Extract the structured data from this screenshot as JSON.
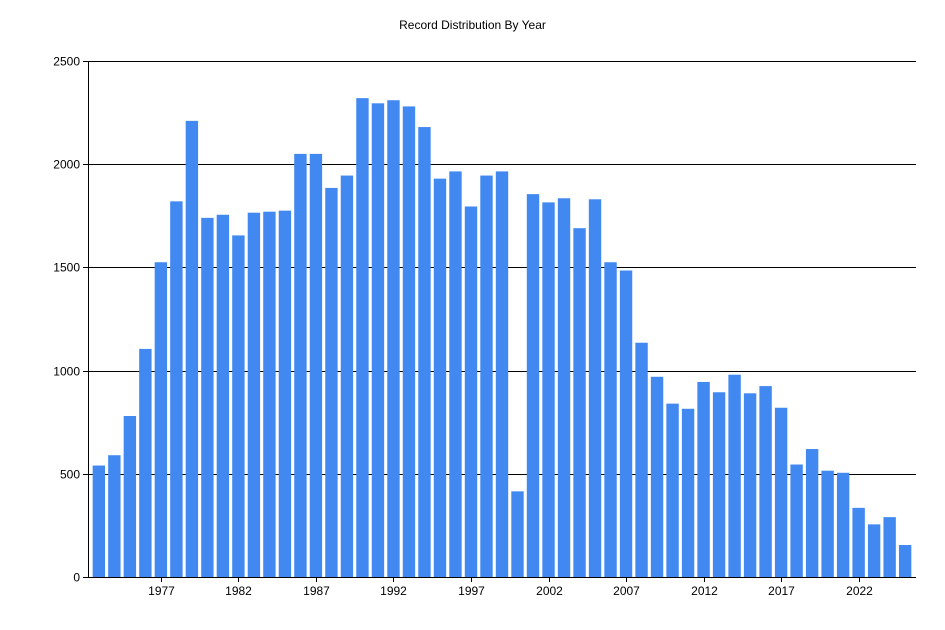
{
  "chart_data": {
    "type": "bar",
    "title": "Record Distribution By Year",
    "xlabel": "",
    "ylabel": "",
    "ylim": [
      0,
      2500
    ],
    "y_ticks": [
      0,
      500,
      1000,
      1500,
      2000,
      2500
    ],
    "x_tick_labels": [
      "1977",
      "1982",
      "1987",
      "1992",
      "1997",
      "2002",
      "2007",
      "2012",
      "2017",
      "2022"
    ],
    "grid": "horizontal",
    "legend": "none",
    "bar_color": "#4189f1",
    "categories": [
      1973,
      1974,
      1975,
      1976,
      1977,
      1978,
      1979,
      1980,
      1981,
      1982,
      1983,
      1984,
      1985,
      1986,
      1987,
      1988,
      1989,
      1990,
      1991,
      1992,
      1993,
      1994,
      1995,
      1996,
      1997,
      1998,
      1999,
      2000,
      2001,
      2002,
      2003,
      2004,
      2005,
      2006,
      2007,
      2008,
      2009,
      2010,
      2011,
      2012,
      2013,
      2014,
      2015,
      2016,
      2017,
      2018,
      2019,
      2020,
      2021,
      2022,
      2023,
      2024,
      2025
    ],
    "values": [
      540,
      590,
      780,
      1105,
      1525,
      1820,
      2210,
      1740,
      1755,
      1655,
      1765,
      1770,
      1775,
      2050,
      2050,
      1885,
      1945,
      2320,
      2295,
      2310,
      2280,
      2180,
      1930,
      1965,
      1795,
      1945,
      1965,
      415,
      1855,
      1815,
      1835,
      1690,
      1830,
      1525,
      1485,
      1135,
      970,
      840,
      815,
      945,
      895,
      980,
      890,
      925,
      820,
      545,
      620,
      515,
      505,
      335,
      255,
      290,
      155
    ]
  }
}
